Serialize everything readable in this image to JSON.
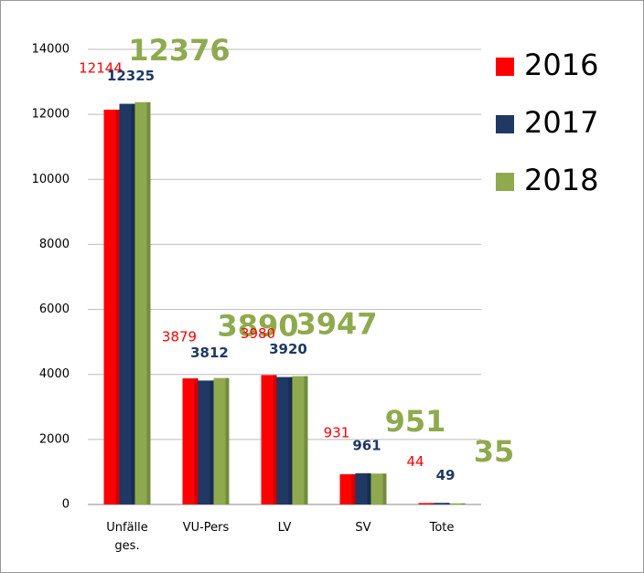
{
  "chart_data": {
    "type": "bar",
    "categories": [
      "Unfälle ges.",
      "VU-Pers",
      "LV",
      "SV",
      "Tote"
    ],
    "series": [
      {
        "name": "2016",
        "color": "#ff0000",
        "values": [
          12144,
          3879,
          3980,
          931,
          44
        ]
      },
      {
        "name": "2017",
        "color": "#1f3864",
        "values": [
          12325,
          3812,
          3920,
          961,
          49
        ]
      },
      {
        "name": "2018",
        "color": "#8faa4e",
        "values": [
          12376,
          3890,
          3947,
          951,
          35
        ]
      }
    ],
    "ylim": [
      0,
      14000
    ],
    "yticks": [
      0,
      2000,
      4000,
      6000,
      8000,
      10000,
      12000,
      14000
    ],
    "grid": true,
    "legend": "right"
  }
}
